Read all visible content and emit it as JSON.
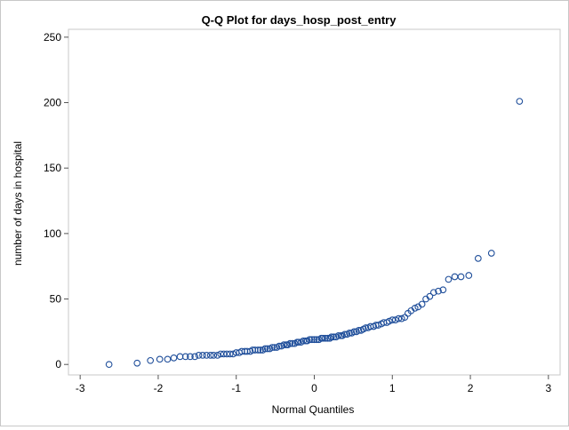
{
  "chart_data": {
    "type": "scatter",
    "title": "Q-Q Plot for days_hosp_post_entry",
    "xlabel": "Normal Quantiles",
    "ylabel": "number of days in hospital",
    "xlim": [
      -3.15,
      3.15
    ],
    "ylim": [
      -8,
      256
    ],
    "xticks": [
      -3,
      -2,
      -1,
      0,
      1,
      2,
      3
    ],
    "yticks": [
      0,
      50,
      100,
      150,
      200,
      250
    ],
    "grid": false,
    "marker": "open-circle",
    "marker_color": "#1f4e9a",
    "points": [
      [
        -2.63,
        0
      ],
      [
        -2.27,
        1
      ],
      [
        -2.1,
        3
      ],
      [
        -1.98,
        4
      ],
      [
        -1.88,
        4
      ],
      [
        -1.8,
        5
      ],
      [
        -1.72,
        6
      ],
      [
        -1.65,
        6
      ],
      [
        -1.59,
        6
      ],
      [
        -1.53,
        6
      ],
      [
        -1.48,
        7
      ],
      [
        -1.43,
        7
      ],
      [
        -1.38,
        7
      ],
      [
        -1.33,
        7
      ],
      [
        -1.29,
        7
      ],
      [
        -1.24,
        7
      ],
      [
        -1.2,
        8
      ],
      [
        -1.16,
        8
      ],
      [
        -1.12,
        8
      ],
      [
        -1.08,
        8
      ],
      [
        -1.04,
        8
      ],
      [
        -1.0,
        9
      ],
      [
        -0.96,
        9
      ],
      [
        -0.93,
        10
      ],
      [
        -0.89,
        10
      ],
      [
        -0.86,
        10
      ],
      [
        -0.82,
        10
      ],
      [
        -0.79,
        11
      ],
      [
        -0.76,
        11
      ],
      [
        -0.72,
        11
      ],
      [
        -0.69,
        11
      ],
      [
        -0.66,
        11
      ],
      [
        -0.63,
        12
      ],
      [
        -0.6,
        12
      ],
      [
        -0.57,
        12
      ],
      [
        -0.54,
        13
      ],
      [
        -0.51,
        13
      ],
      [
        -0.48,
        13
      ],
      [
        -0.45,
        14
      ],
      [
        -0.42,
        14
      ],
      [
        -0.39,
        15
      ],
      [
        -0.36,
        15
      ],
      [
        -0.34,
        15
      ],
      [
        -0.31,
        16
      ],
      [
        -0.28,
        16
      ],
      [
        -0.25,
        16
      ],
      [
        -0.22,
        17
      ],
      [
        -0.2,
        17
      ],
      [
        -0.17,
        17
      ],
      [
        -0.14,
        18
      ],
      [
        -0.11,
        18
      ],
      [
        -0.09,
        18
      ],
      [
        -0.06,
        19
      ],
      [
        -0.03,
        19
      ],
      [
        0.0,
        19
      ],
      [
        0.03,
        19
      ],
      [
        0.06,
        19
      ],
      [
        0.09,
        20
      ],
      [
        0.11,
        20
      ],
      [
        0.14,
        20
      ],
      [
        0.17,
        20
      ],
      [
        0.2,
        20
      ],
      [
        0.22,
        21
      ],
      [
        0.25,
        21
      ],
      [
        0.28,
        21
      ],
      [
        0.31,
        22
      ],
      [
        0.34,
        22
      ],
      [
        0.36,
        22
      ],
      [
        0.39,
        23
      ],
      [
        0.42,
        23
      ],
      [
        0.45,
        24
      ],
      [
        0.48,
        24
      ],
      [
        0.51,
        25
      ],
      [
        0.54,
        25
      ],
      [
        0.57,
        26
      ],
      [
        0.6,
        26
      ],
      [
        0.63,
        27
      ],
      [
        0.66,
        28
      ],
      [
        0.69,
        28
      ],
      [
        0.72,
        29
      ],
      [
        0.76,
        29
      ],
      [
        0.79,
        30
      ],
      [
        0.82,
        30
      ],
      [
        0.86,
        31
      ],
      [
        0.89,
        32
      ],
      [
        0.93,
        32
      ],
      [
        0.96,
        33
      ],
      [
        1.0,
        34
      ],
      [
        1.04,
        34
      ],
      [
        1.08,
        35
      ],
      [
        1.12,
        35
      ],
      [
        1.16,
        36
      ],
      [
        1.2,
        39
      ],
      [
        1.24,
        41
      ],
      [
        1.29,
        43
      ],
      [
        1.33,
        44
      ],
      [
        1.38,
        46
      ],
      [
        1.43,
        50
      ],
      [
        1.48,
        52
      ],
      [
        1.53,
        55
      ],
      [
        1.59,
        56
      ],
      [
        1.65,
        57
      ],
      [
        1.72,
        65
      ],
      [
        1.8,
        67
      ],
      [
        1.88,
        67
      ],
      [
        1.98,
        68
      ],
      [
        2.1,
        81
      ],
      [
        2.27,
        85
      ],
      [
        2.63,
        201
      ]
    ]
  }
}
